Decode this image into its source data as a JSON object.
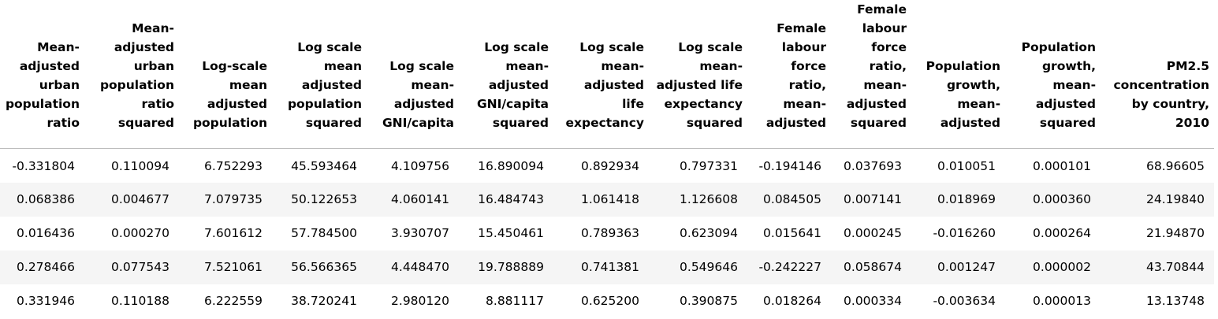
{
  "table": {
    "columns": [
      "Mean-adjusted urban population ratio",
      "Mean-adjusted urban population ratio squared",
      "Log-scale mean adjusted population",
      "Log scale mean adjusted population squared",
      "Log scale mean-adjusted GNI/capita",
      "Log scale mean-adjusted GNI/capita squared",
      "Log scale mean-adjusted life expectancy",
      "Log scale mean-adjusted life expectancy squared",
      "Female labour force ratio, mean-adjusted",
      "Female labour force ratio, mean-adjusted squared",
      "Population growth, mean-adjusted",
      "Population growth, mean-adjusted squared",
      "PM2.5 concentration by country, 2010"
    ],
    "rows": [
      [
        "-0.331804",
        "0.110094",
        "6.752293",
        "45.593464",
        "4.109756",
        "16.890094",
        "0.892934",
        "0.797331",
        "-0.194146",
        "0.037693",
        "0.010051",
        "0.000101",
        "68.96605"
      ],
      [
        "0.068386",
        "0.004677",
        "7.079735",
        "50.122653",
        "4.060141",
        "16.484743",
        "1.061418",
        "1.126608",
        "0.084505",
        "0.007141",
        "0.018969",
        "0.000360",
        "24.19840"
      ],
      [
        "0.016436",
        "0.000270",
        "7.601612",
        "57.784500",
        "3.930707",
        "15.450461",
        "0.789363",
        "0.623094",
        "0.015641",
        "0.000245",
        "-0.016260",
        "0.000264",
        "21.94870"
      ],
      [
        "0.278466",
        "0.077543",
        "7.521061",
        "56.566365",
        "4.448470",
        "19.788889",
        "0.741381",
        "0.549646",
        "-0.242227",
        "0.058674",
        "0.001247",
        "0.000002",
        "43.70844"
      ],
      [
        "0.331946",
        "0.110188",
        "6.222559",
        "38.720241",
        "2.980120",
        "8.881117",
        "0.625200",
        "0.390875",
        "0.018264",
        "0.000334",
        "-0.003634",
        "0.000013",
        "13.13748"
      ]
    ]
  }
}
